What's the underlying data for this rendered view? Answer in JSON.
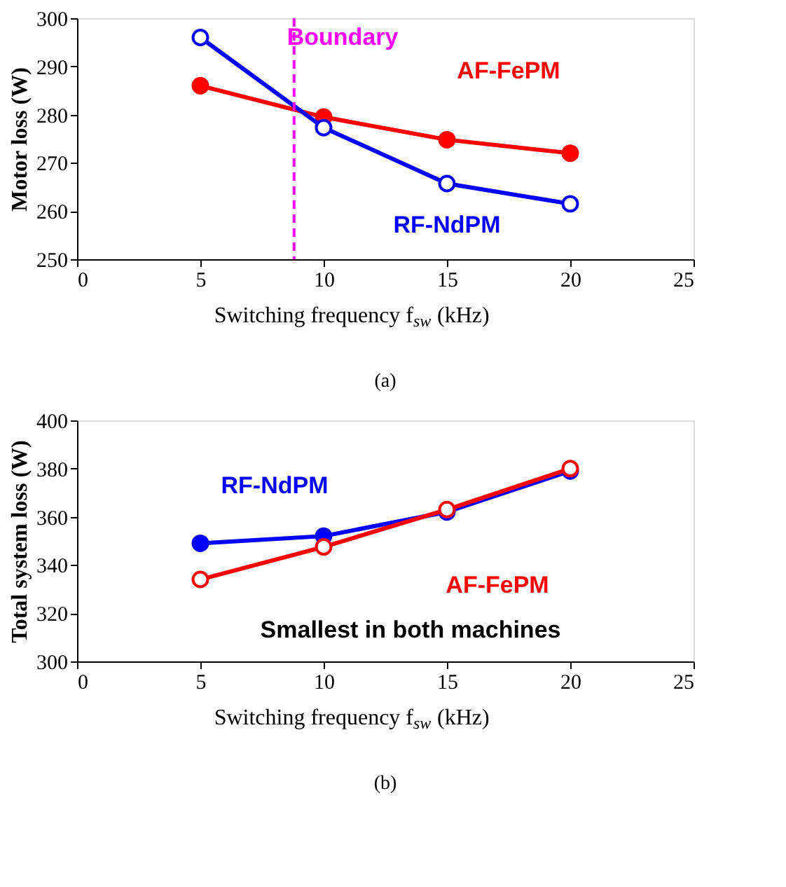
{
  "chart_data": [
    {
      "type": "line",
      "title": "(a)",
      "xlabel": "Switching frequency f$_{sw}$ (kHz)",
      "ylabel": "Motor loss (W)",
      "x": [
        5,
        10,
        15,
        20
      ],
      "series": [
        {
          "name": "AF-FePM",
          "color": "#ff0000",
          "values": [
            286,
            279.5,
            274.8,
            272
          ]
        },
        {
          "name": "RF-NdPM",
          "color": "#0000ff",
          "values": [
            296,
            277.3,
            265.7,
            261.5
          ]
        }
      ],
      "xlim": [
        0,
        25
      ],
      "xticks": [
        0,
        5,
        10,
        15,
        20,
        25
      ],
      "ylim": [
        250,
        300
      ],
      "yticks": [
        250,
        260,
        270,
        280,
        290,
        300
      ],
      "ref_lines": [
        {
          "axis": "x",
          "value": 8.8,
          "label": "Boundary",
          "color": "#ff00ff",
          "line_style": "dashed"
        }
      ],
      "marker": "circle",
      "grid": false,
      "legend": false
    },
    {
      "type": "line",
      "title": "(b)",
      "xlabel": "Switching frequency f$_{sw}$ (kHz)",
      "ylabel": "Total system loss (W)",
      "x": [
        5,
        10,
        15,
        20
      ],
      "series": [
        {
          "name": "RF-NdPM",
          "color": "#0000ff",
          "values": [
            349,
            352,
            362,
            379
          ]
        },
        {
          "name": "AF-FePM",
          "color": "#ff0000",
          "values": [
            334,
            347.5,
            363,
            380
          ]
        }
      ],
      "xlim": [
        0,
        25
      ],
      "xticks": [
        0,
        5,
        10,
        15,
        20,
        25
      ],
      "ylim": [
        300,
        400
      ],
      "yticks": [
        300,
        320,
        340,
        360,
        380,
        400
      ],
      "annotations": [
        "Smallest in both machines"
      ],
      "marker": "circle",
      "grid": false,
      "legend": false
    }
  ]
}
